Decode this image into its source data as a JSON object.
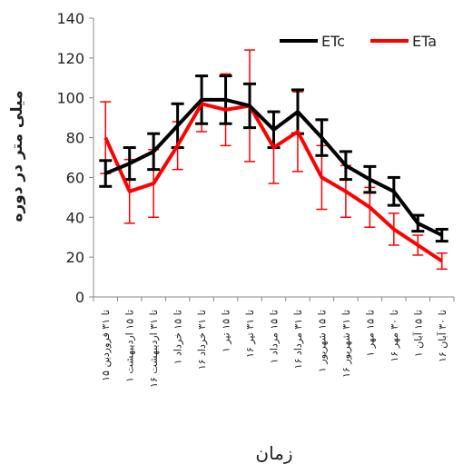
{
  "chart_data": {
    "type": "line",
    "title": "",
    "xlabel": "زمان",
    "ylabel": "میلی متر در دوره",
    "ylim": [
      0,
      140
    ],
    "yticks": [
      0,
      20,
      40,
      60,
      80,
      100,
      120,
      140
    ],
    "grid": false,
    "legend_position": "top-right",
    "categories": [
      "۱۵ تا ۳۱ فروردین",
      "۱ تا ۱۵ اردیبهشت",
      "۱۶ تا ۳۱ اردیبهشت",
      "۱ تا ۱۵ خرداد",
      "۱۶ تا ۳۱ خرداد",
      "۱ تا ۱۵ تیر",
      "۱۶ تا ۳۱ تیر",
      "۱ تا ۱۵ مرداد",
      "۱۶ تا ۳۱ مرداد",
      "۱ تا ۱۵ شهریور",
      "۱۶ تا ۳۱ شهریور",
      "۱ تا ۱۵ مهر",
      "۱۶ تا ۳۰ مهر",
      "۱ تا ۱۵ آبان",
      "۱۶ تا ۳۰ آبان"
    ],
    "series": [
      {
        "name": "ETc",
        "color": "#000000",
        "values": [
          62,
          67,
          73,
          86,
          99,
          99,
          96,
          84,
          93,
          80,
          66,
          59,
          53,
          37,
          31
        ],
        "error": [
          6.5,
          8,
          9,
          11,
          12,
          12,
          11,
          9,
          11,
          9,
          7,
          6.5,
          7,
          4,
          3
        ]
      },
      {
        "name": "ETa",
        "color": "#ff0000",
        "values": [
          80,
          53,
          57,
          76,
          97,
          94,
          96,
          75,
          83,
          60,
          53,
          45,
          34,
          26,
          18
        ],
        "error": [
          18,
          16,
          17,
          12,
          14,
          18,
          28,
          18,
          20,
          16,
          13,
          10,
          8,
          5,
          4
        ]
      }
    ]
  }
}
